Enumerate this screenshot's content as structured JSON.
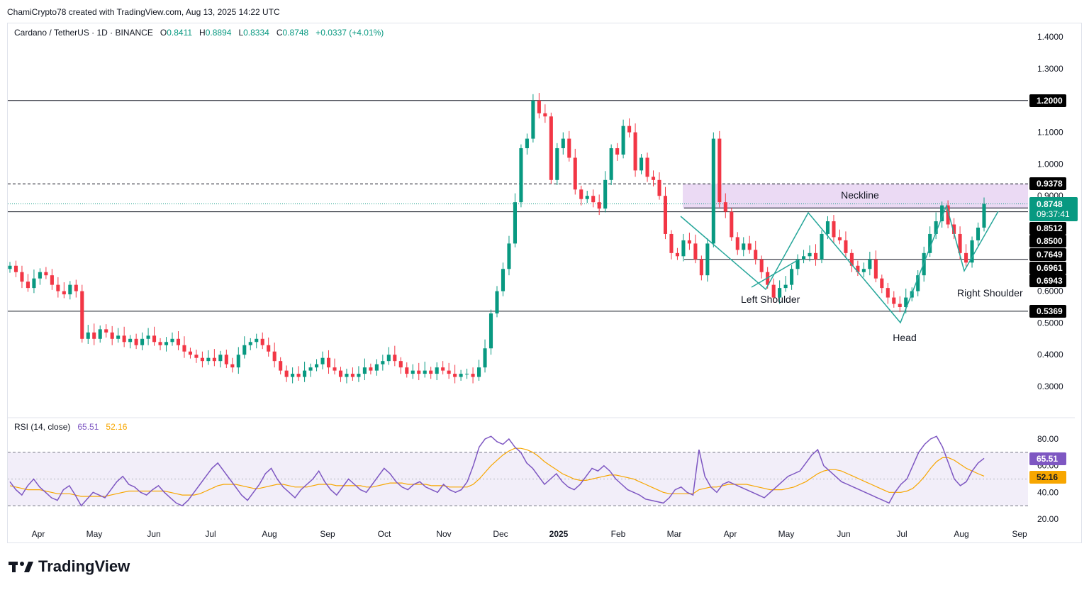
{
  "credit": "ChamiCrypto78 created with TradingView.com, Aug 13, 2025 14:22 UTC",
  "legend": {
    "symbol": "Cardano / TetherUS · 1D · BINANCE",
    "o_label": "O",
    "o": "0.8411",
    "h_label": "H",
    "h": "0.8894",
    "l_label": "L",
    "l": "0.8334",
    "c_label": "C",
    "c": "0.8748",
    "change": "+0.0337 (+4.01%)"
  },
  "rsi_legend": {
    "label": "RSI (14, close)",
    "rsi": "65.51",
    "ma": "52.16"
  },
  "branding": {
    "logo_text": "TradingView"
  },
  "colors": {
    "up": "#089981",
    "down": "#f23645",
    "rsi": "#7e57c2",
    "rsi_ma": "#f7a600",
    "zone": "#e1bee7",
    "pattern": "#26a69a"
  },
  "chart_data": [
    {
      "type": "candlestick",
      "title": "Cardano / TetherUS · 1D · BINANCE",
      "y_ticks": [
        "1.4000",
        "1.3000",
        "1.1000",
        "1.0000",
        "0.9000",
        "0.6000",
        "0.5000",
        "0.4000",
        "0.3000"
      ],
      "ylim": [
        0.24,
        1.44
      ],
      "x_ticks": [
        "Apr",
        "May",
        "Jun",
        "Jul",
        "Aug",
        "Sep",
        "Oct",
        "Nov",
        "Dec",
        "2025",
        "Feb",
        "Mar",
        "Apr",
        "May",
        "Jun",
        "Jul",
        "Aug",
        "Sep"
      ],
      "price_tags": [
        {
          "value": 1.2,
          "label": "1.2000",
          "style": "dark"
        },
        {
          "value": 0.9378,
          "label": "0.9378",
          "style": "dark"
        },
        {
          "value": 0.8748,
          "label": "0.8748",
          "style": "green",
          "sub": "09:37:41"
        },
        {
          "value": 0.8512,
          "label": "0.8512",
          "style": "dark"
        },
        {
          "value": 0.85,
          "label": "0.8500",
          "style": "dark"
        },
        {
          "value": 0.7649,
          "label": "0.7649",
          "style": "dark"
        },
        {
          "value": 0.6961,
          "label": "0.6961",
          "style": "dark"
        },
        {
          "value": 0.6943,
          "label": "0.6943",
          "style": "dark"
        },
        {
          "value": 0.5369,
          "label": "0.5369",
          "style": "dark"
        }
      ],
      "horizontal_lines": [
        1.2,
        0.85,
        0.5369
      ],
      "dashed_line": 0.9378,
      "current_price": 0.8748,
      "neckline_zone": [
        0.86,
        0.9378
      ],
      "annotations": [
        "Neckline",
        "Left Shoulder",
        "Head",
        "Right Shoulder"
      ],
      "closes": [
        0.68,
        0.66,
        0.63,
        0.61,
        0.64,
        0.66,
        0.65,
        0.62,
        0.6,
        0.59,
        0.62,
        0.6,
        0.45,
        0.47,
        0.45,
        0.48,
        0.47,
        0.45,
        0.46,
        0.44,
        0.45,
        0.43,
        0.45,
        0.46,
        0.44,
        0.43,
        0.44,
        0.45,
        0.43,
        0.41,
        0.4,
        0.39,
        0.38,
        0.39,
        0.38,
        0.4,
        0.37,
        0.36,
        0.4,
        0.43,
        0.44,
        0.45,
        0.43,
        0.41,
        0.38,
        0.35,
        0.33,
        0.34,
        0.33,
        0.35,
        0.36,
        0.37,
        0.39,
        0.36,
        0.35,
        0.33,
        0.34,
        0.33,
        0.34,
        0.36,
        0.35,
        0.37,
        0.38,
        0.4,
        0.38,
        0.36,
        0.34,
        0.35,
        0.34,
        0.35,
        0.34,
        0.36,
        0.35,
        0.34,
        0.33,
        0.34,
        0.34,
        0.33,
        0.36,
        0.42,
        0.53,
        0.6,
        0.67,
        0.75,
        0.88,
        1.05,
        1.08,
        1.2,
        1.16,
        1.15,
        0.95,
        1.05,
        1.08,
        1.02,
        0.92,
        0.89,
        0.9,
        0.88,
        0.86,
        0.95,
        1.05,
        1.03,
        1.12,
        1.1,
        0.98,
        1.02,
        0.96,
        0.95,
        0.9,
        0.78,
        0.72,
        0.71,
        0.76,
        0.75,
        0.7,
        0.65,
        0.75,
        1.08,
        0.88,
        0.85,
        0.77,
        0.73,
        0.75,
        0.73,
        0.7,
        0.66,
        0.62,
        0.58,
        0.61,
        0.62,
        0.67,
        0.7,
        0.71,
        0.72,
        0.7,
        0.78,
        0.82,
        0.77,
        0.76,
        0.72,
        0.68,
        0.66,
        0.67,
        0.7,
        0.64,
        0.61,
        0.58,
        0.56,
        0.55,
        0.58,
        0.6,
        0.65,
        0.72,
        0.78,
        0.82,
        0.87,
        0.81,
        0.78,
        0.72,
        0.69,
        0.76,
        0.8,
        0.8748
      ]
    },
    {
      "type": "line",
      "title": "RSI (14, close)",
      "y_ticks": [
        "80.00",
        "60.00",
        "40.00",
        "20.00"
      ],
      "ylim": [
        20,
        88
      ],
      "band": [
        30,
        70
      ],
      "series": [
        {
          "name": "RSI",
          "last": 65.51,
          "values": [
            48,
            42,
            38,
            45,
            50,
            44,
            40,
            36,
            34,
            42,
            45,
            38,
            30,
            35,
            40,
            38,
            36,
            42,
            48,
            52,
            46,
            44,
            40,
            38,
            42,
            45,
            40,
            36,
            32,
            30,
            34,
            40,
            46,
            52,
            58,
            62,
            56,
            50,
            44,
            38,
            34,
            40,
            46,
            54,
            58,
            50,
            44,
            40,
            36,
            42,
            46,
            50,
            56,
            48,
            42,
            38,
            44,
            50,
            46,
            42,
            40,
            46,
            52,
            58,
            54,
            48,
            44,
            42,
            46,
            48,
            44,
            42,
            40,
            46,
            42,
            40,
            42,
            48,
            60,
            74,
            80,
            82,
            78,
            76,
            80,
            74,
            70,
            62,
            58,
            52,
            46,
            50,
            54,
            48,
            44,
            42,
            46,
            52,
            58,
            56,
            60,
            56,
            50,
            46,
            42,
            40,
            38,
            35,
            34,
            33,
            32,
            36,
            42,
            44,
            40,
            38,
            72,
            52,
            44,
            40,
            46,
            48,
            46,
            44,
            42,
            40,
            38,
            36,
            40,
            44,
            48,
            52,
            54,
            56,
            62,
            68,
            72,
            60,
            56,
            52,
            48,
            46,
            44,
            42,
            40,
            38,
            36,
            34,
            32,
            40,
            46,
            50,
            60,
            70,
            76,
            80,
            82,
            74,
            62,
            50,
            45,
            48,
            56,
            62,
            65.51
          ]
        },
        {
          "name": "MA",
          "last": 52.16,
          "values": [
            45,
            44,
            43,
            42,
            42,
            42,
            41,
            40,
            39,
            39,
            39,
            38,
            37,
            37,
            37,
            37,
            37,
            38,
            39,
            40,
            41,
            41,
            41,
            41,
            41,
            41,
            41,
            40,
            39,
            38,
            38,
            38,
            39,
            41,
            43,
            45,
            46,
            46,
            46,
            45,
            44,
            43,
            43,
            44,
            45,
            46,
            46,
            45,
            44,
            44,
            44,
            45,
            46,
            46,
            46,
            45,
            45,
            45,
            45,
            45,
            44,
            44,
            45,
            46,
            47,
            47,
            47,
            46,
            46,
            46,
            46,
            45,
            45,
            45,
            44,
            44,
            44,
            44,
            46,
            50,
            55,
            60,
            64,
            68,
            71,
            73,
            73,
            72,
            70,
            67,
            63,
            60,
            57,
            54,
            52,
            50,
            49,
            49,
            50,
            51,
            52,
            53,
            53,
            52,
            51,
            50,
            48,
            46,
            44,
            42,
            40,
            39,
            39,
            39,
            39,
            39,
            42,
            43,
            44,
            44,
            45,
            46,
            46,
            46,
            46,
            45,
            44,
            43,
            42,
            42,
            42,
            43,
            44,
            46,
            48,
            51,
            54,
            56,
            57,
            57,
            56,
            54,
            52,
            50,
            48,
            46,
            44,
            42,
            40,
            40,
            40,
            41,
            43,
            47,
            52,
            58,
            63,
            66,
            66,
            64,
            61,
            58,
            56,
            54,
            52.16
          ]
        }
      ]
    }
  ]
}
